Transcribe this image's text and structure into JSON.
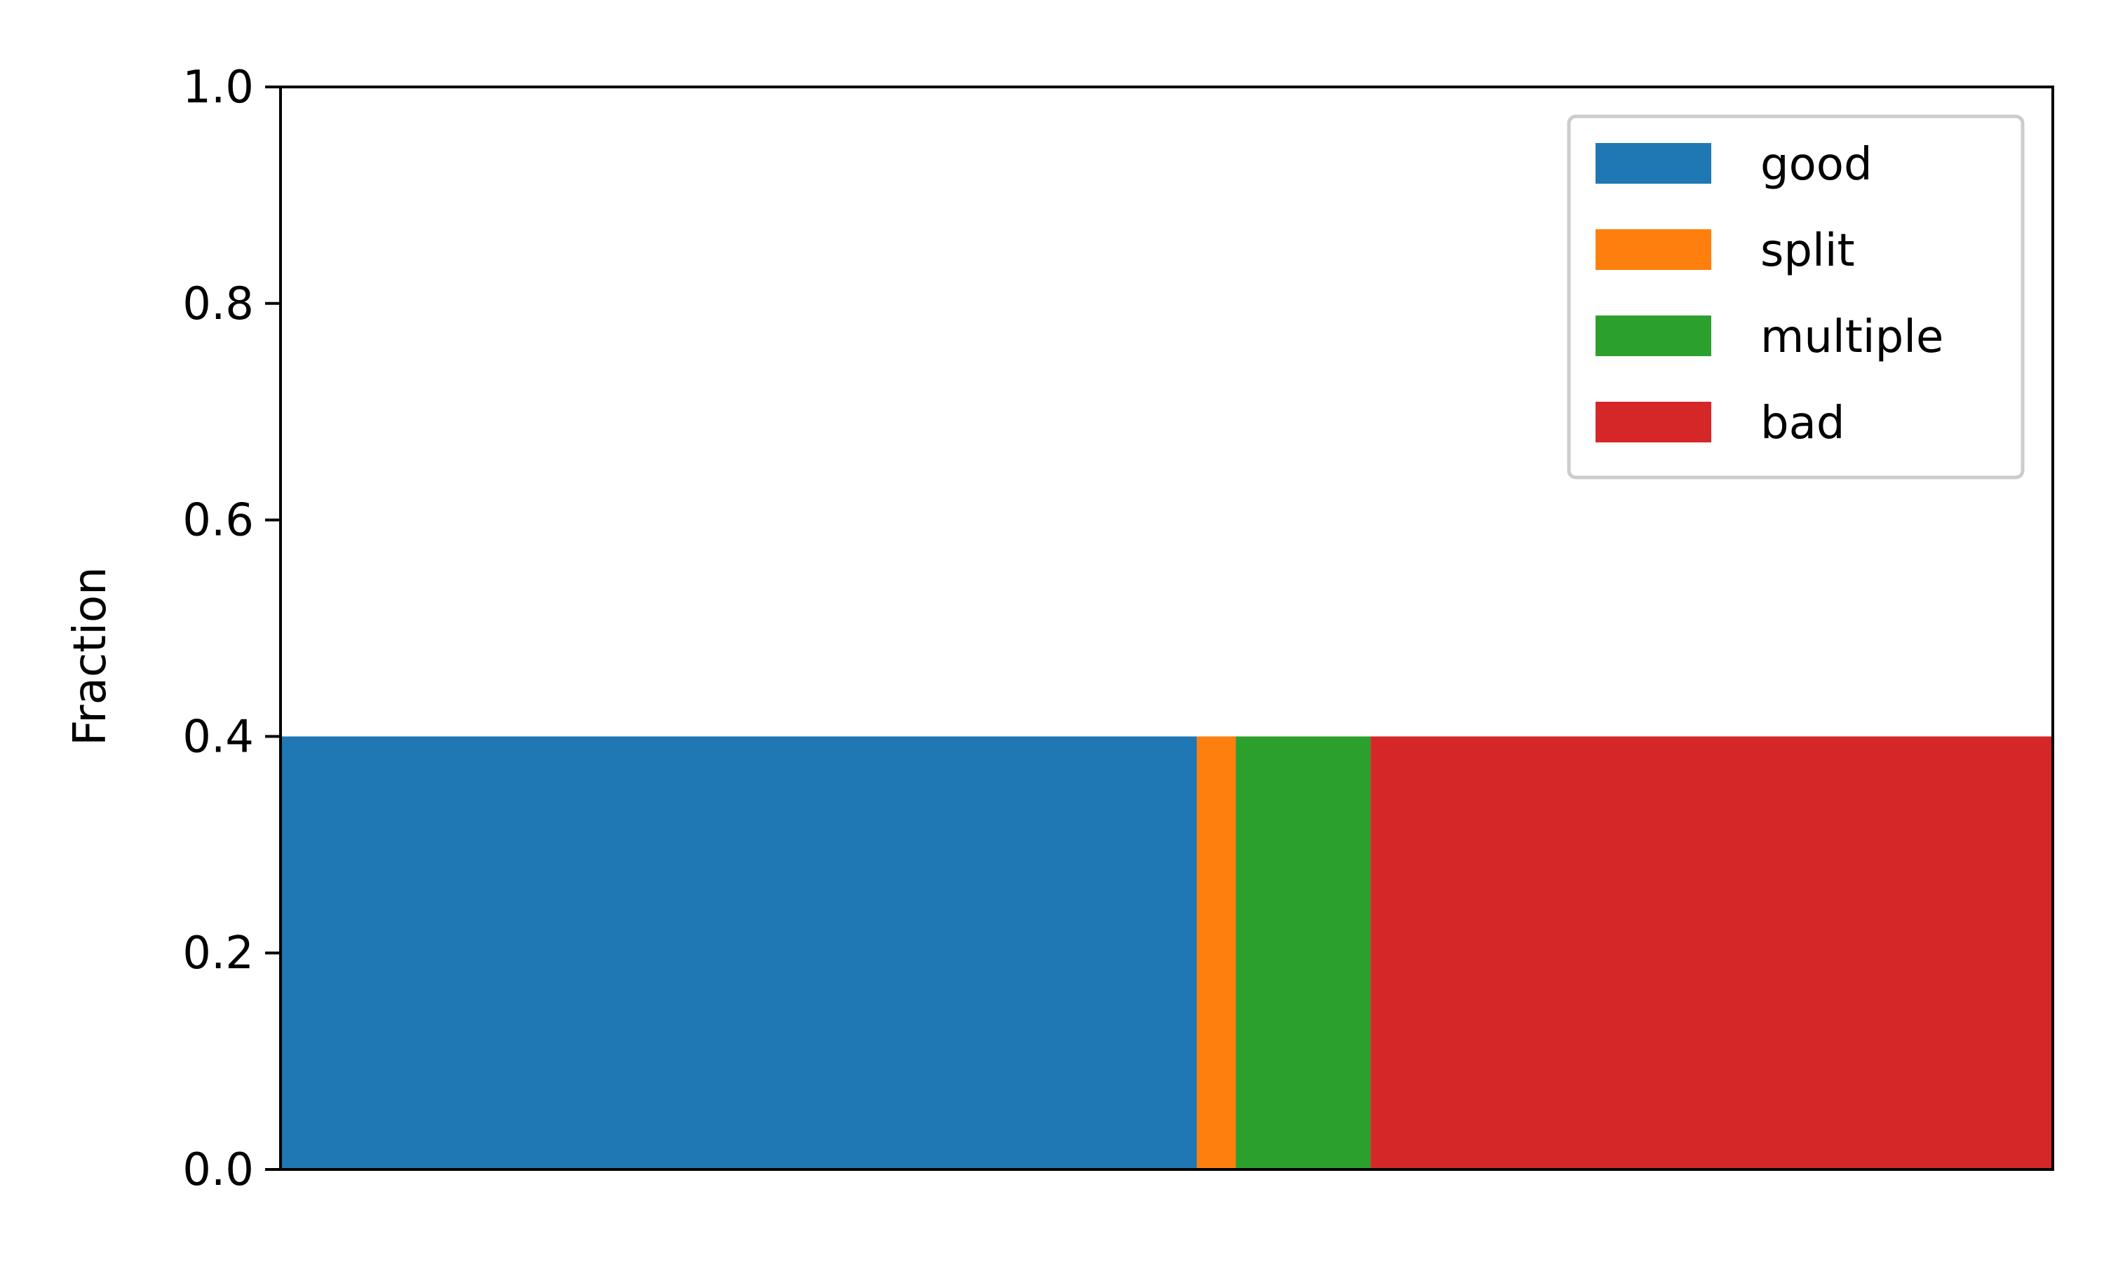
{
  "chart_data": {
    "type": "bar",
    "stacking": "horizontal-proportional",
    "ylabel": "Fraction",
    "xlabel": "",
    "ylim": [
      0,
      1.0
    ],
    "yticks": [
      "0.0",
      "0.2",
      "0.4",
      "0.6",
      "0.8",
      "1.0"
    ],
    "xticks_shown": false,
    "grid": false,
    "legend_position": "top-right",
    "bar_height": 0.4,
    "series": [
      {
        "name": "good",
        "share": 0.517,
        "color": "#1f77b4"
      },
      {
        "name": "split",
        "share": 0.022,
        "color": "#ff7f0e"
      },
      {
        "name": "multiple",
        "share": 0.076,
        "color": "#2ca02c"
      },
      {
        "name": "bad",
        "share": 0.385,
        "color": "#d62728"
      }
    ]
  }
}
